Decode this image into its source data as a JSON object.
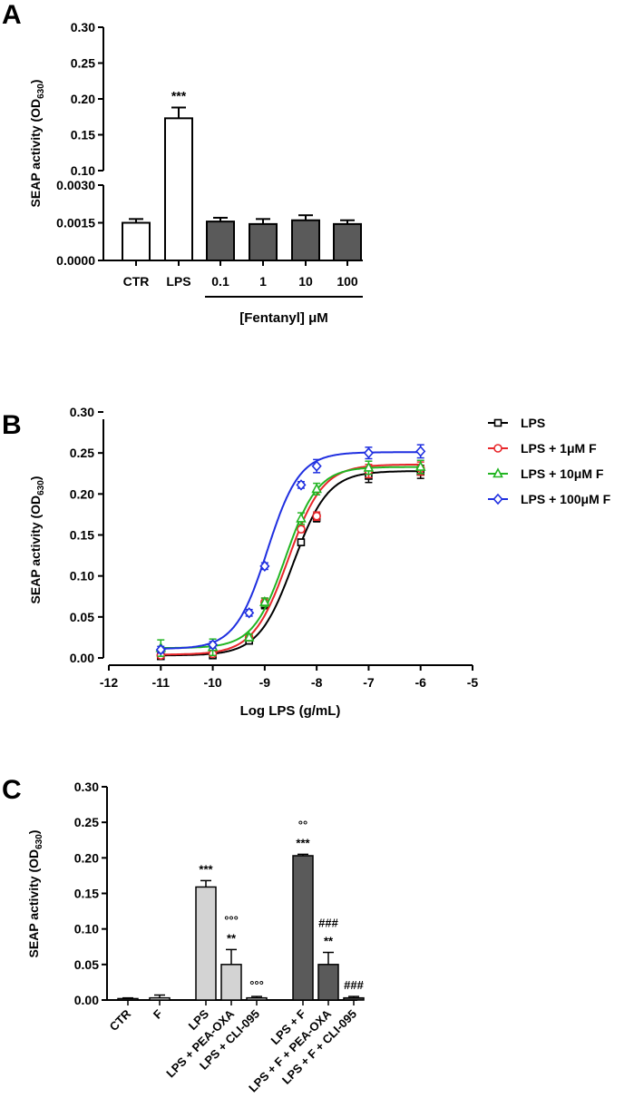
{
  "chart_data": [
    {
      "panel": "A",
      "type": "bar",
      "ylabel_main": "SEAP activity (OD",
      "ylabel_sub": "630",
      "ylabel_close": ")",
      "categories": [
        "CTR",
        "LPS",
        "0.1",
        "1",
        "10",
        "100"
      ],
      "group_label": "[Fentanyl] μM",
      "values": [
        0.0015,
        0.173,
        0.00155,
        0.00145,
        0.0016,
        0.00145
      ],
      "errors": [
        0.00015,
        0.015,
        0.00015,
        0.0002,
        0.0002,
        0.00015
      ],
      "fills": [
        "#ffffff",
        "#ffffff",
        "#5a5a5a",
        "#5a5a5a",
        "#5a5a5a",
        "#5a5a5a"
      ],
      "annotations": [
        {
          "bar": 1,
          "text": "***"
        }
      ],
      "axis_break": true,
      "upper_ticks": [
        "0.10",
        "0.15",
        "0.20",
        "0.25",
        "0.30"
      ],
      "upper_tick_values": [
        0.1,
        0.15,
        0.2,
        0.25,
        0.3
      ],
      "upper_range": [
        0.1,
        0.3
      ],
      "lower_ticks": [
        "0.0000",
        "0.0015",
        "0.0030"
      ],
      "lower_tick_values": [
        0,
        0.0015,
        0.003
      ],
      "lower_range": [
        0,
        0.003
      ]
    },
    {
      "panel": "B",
      "type": "line",
      "ylabel_main": "SEAP activity (OD",
      "ylabel_sub": "630",
      "ylabel_close": ")",
      "xlabel": "Log LPS (g/mL)",
      "xlim": [
        -12,
        -5
      ],
      "ylim": [
        0,
        0.3
      ],
      "xticks": [
        "-12",
        "-11",
        "-10",
        "-9",
        "-8",
        "-7",
        "-6",
        "-5"
      ],
      "xtick_values": [
        -12,
        -11,
        -10,
        -9,
        -8,
        -7,
        -6,
        -5
      ],
      "yticks": [
        "0.00",
        "0.05",
        "0.10",
        "0.15",
        "0.20",
        "0.25",
        "0.30"
      ],
      "ytick_values": [
        0,
        0.05,
        0.1,
        0.15,
        0.2,
        0.25,
        0.3
      ],
      "x": [
        -11,
        -10,
        -9.3,
        -9,
        -8.3,
        -8,
        -7,
        -6
      ],
      "series": [
        {
          "name": "LPS",
          "color": "#000000",
          "marker": "square",
          "values": [
            0.002,
            0.003,
            0.021,
            0.065,
            0.141,
            0.171,
            0.222,
            0.227
          ],
          "errors": [
            0.003,
            0.003,
            0.004,
            0.005,
            0.004,
            0.005,
            0.008,
            0.008
          ],
          "fit": {
            "bottom": 0.003,
            "top": 0.228,
            "logec50": -8.45,
            "hill": 1.3
          }
        },
        {
          "name": "LPS + 1μM F",
          "color": "#e8262a",
          "marker": "circle",
          "values": [
            0.003,
            0.005,
            0.025,
            0.068,
            0.157,
            0.173,
            0.228,
            0.231
          ],
          "errors": [
            0.003,
            0.003,
            0.004,
            0.005,
            0.004,
            0.005,
            0.008,
            0.008
          ],
          "fit": {
            "bottom": 0.004,
            "top": 0.236,
            "logec50": -8.55,
            "hill": 1.3
          }
        },
        {
          "name": "LPS + 10μM F",
          "color": "#22b522",
          "marker": "triangle",
          "values": [
            0.012,
            0.013,
            0.025,
            0.068,
            0.17,
            0.206,
            0.232,
            0.233
          ],
          "errors": [
            0.01,
            0.01,
            0.004,
            0.005,
            0.007,
            0.007,
            0.008,
            0.008
          ],
          "fit": {
            "bottom": 0.012,
            "top": 0.233,
            "logec50": -8.6,
            "hill": 1.4
          }
        },
        {
          "name": "LPS + 100μM F",
          "color": "#1f2fe0",
          "marker": "diamond",
          "values": [
            0.01,
            0.016,
            0.055,
            0.112,
            0.211,
            0.234,
            0.25,
            0.252
          ],
          "errors": [
            0.004,
            0.004,
            0.004,
            0.004,
            0.004,
            0.008,
            0.007,
            0.008
          ],
          "fit": {
            "bottom": 0.011,
            "top": 0.251,
            "logec50": -8.95,
            "hill": 1.4
          }
        }
      ]
    },
    {
      "panel": "C",
      "type": "bar",
      "ylabel_main": "SEAP activity (OD",
      "ylabel_sub": "630",
      "ylabel_close": ")",
      "ylim": [
        0,
        0.3
      ],
      "yticks": [
        "0.00",
        "0.05",
        "0.10",
        "0.15",
        "0.20",
        "0.25",
        "0.30"
      ],
      "ytick_values": [
        0,
        0.05,
        0.1,
        0.15,
        0.2,
        0.25,
        0.3
      ],
      "categories": [
        "CTR",
        "F",
        "LPS",
        "LPS + PEA-OXA",
        "LPS + CLI-095",
        "LPS + F",
        "LPS + F + PEA-OXA",
        "LPS + F + CLI-095"
      ],
      "values": [
        0.002,
        0.003,
        0.159,
        0.05,
        0.003,
        0.203,
        0.05,
        0.003
      ],
      "errors": [
        0.001,
        0.004,
        0.009,
        0.021,
        0.002,
        0.002,
        0.017,
        0.002
      ],
      "fills": [
        "#ffffff",
        "#ffffff",
        "#d3d3d3",
        "#d3d3d3",
        "#d3d3d3",
        "#5a5a5a",
        "#5a5a5a",
        "#5a5a5a"
      ],
      "annotations": [
        {
          "bar": 2,
          "lines": [
            "***"
          ]
        },
        {
          "bar": 3,
          "lines": [
            "°°°",
            "**"
          ]
        },
        {
          "bar": 4,
          "lines": [
            "°°°"
          ]
        },
        {
          "bar": 5,
          "lines": [
            "°°",
            "***"
          ]
        },
        {
          "bar": 6,
          "lines": [
            "###",
            "**"
          ]
        },
        {
          "bar": 7,
          "lines": [
            "###"
          ]
        }
      ]
    }
  ],
  "panel_labels": [
    "A",
    "B",
    "C"
  ]
}
